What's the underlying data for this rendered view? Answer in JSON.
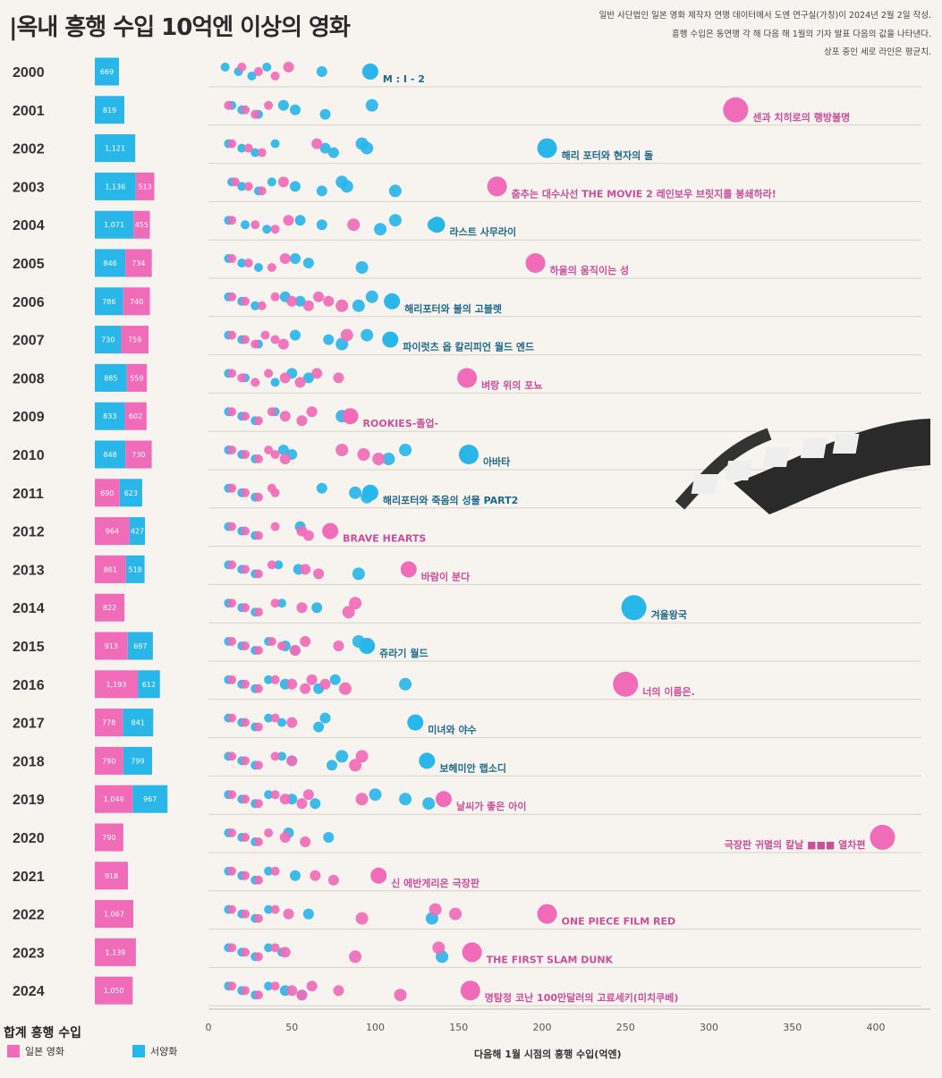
{
  "title": "|옥내 흥행 수입 10억엔 이상의 영화",
  "notes": [
    "일반 사단법인 일본 영화 제작자 연맹 데이터에서 도엔 연구실(가칭)이 2024년 2월 2일 작성.",
    "흥행 수입은 동연맹 각 해 다음 해 1월의 기자 발표 다음의 값을 나타낸다.",
    "상포 중인 세로 라인은 평균치."
  ],
  "legend": {
    "title": "합계 흥행 수입",
    "japanese": "일본 영화",
    "western": "서양화"
  },
  "colors": {
    "japanese": "#f06cb9",
    "western": "#29b6e8",
    "background": "#f7f3ef"
  },
  "chart_data": {
    "type": "scatter",
    "xlabel": "다음해 1월 시점의 흥행 수입(억엔)",
    "xlim": [
      0,
      430
    ],
    "xticks": [
      0,
      50,
      100,
      150,
      200,
      250,
      300,
      350,
      400
    ],
    "years": [
      2000,
      2001,
      2002,
      2003,
      2004,
      2005,
      2006,
      2007,
      2008,
      2009,
      2010,
      2011,
      2012,
      2013,
      2014,
      2015,
      2016,
      2017,
      2018,
      2019,
      2020,
      2021,
      2022,
      2023,
      2024
    ],
    "totals": [
      {
        "year": 2000,
        "western": 669,
        "japanese": null,
        "western_label": "669",
        "japanese_label": ""
      },
      {
        "year": 2001,
        "western": 819,
        "japanese": null,
        "western_label": "819",
        "japanese_label": ""
      },
      {
        "year": 2002,
        "western": 1121,
        "japanese": null,
        "western_label": "1,121",
        "japanese_label": ""
      },
      {
        "year": 2003,
        "western": 1136,
        "japanese": 513,
        "western_label": "1,136",
        "japanese_label": "513"
      },
      {
        "year": 2004,
        "western": 1071,
        "japanese": 455,
        "western_label": "1,071",
        "japanese_label": "455"
      },
      {
        "year": 2005,
        "western": 846,
        "japanese": 734,
        "western_label": "846",
        "japanese_label": "734"
      },
      {
        "year": 2006,
        "western": 786,
        "japanese": 740,
        "western_label": "786",
        "japanese_label": "740"
      },
      {
        "year": 2007,
        "western": 730,
        "japanese": 759,
        "western_label": "730",
        "japanese_label": "759"
      },
      {
        "year": 2008,
        "western": 885,
        "japanese": 559,
        "western_label": "885",
        "japanese_label": "559"
      },
      {
        "year": 2009,
        "western": 833,
        "japanese": 602,
        "western_label": "833",
        "japanese_label": "602"
      },
      {
        "year": 2010,
        "western": 848,
        "japanese": 730,
        "western_label": "848",
        "japanese_label": "730"
      },
      {
        "year": 2011,
        "japanese": 690,
        "western": 623,
        "japanese_label": "690",
        "western_label": "623"
      },
      {
        "year": 2012,
        "japanese": 964,
        "western": 427,
        "japanese_label": "964",
        "western_label": "427"
      },
      {
        "year": 2013,
        "japanese": 861,
        "western": 518,
        "japanese_label": "861",
        "western_label": "518"
      },
      {
        "year": 2014,
        "japanese": 822,
        "western": null,
        "japanese_label": "822",
        "western_label": ""
      },
      {
        "year": 2015,
        "japanese": 913,
        "western": 697,
        "japanese_label": "913",
        "western_label": "697"
      },
      {
        "year": 2016,
        "japanese": 1193,
        "western": 612,
        "japanese_label": "1,193",
        "western_label": "612"
      },
      {
        "year": 2017,
        "japanese": 778,
        "western": 841,
        "japanese_label": "778",
        "western_label": "841"
      },
      {
        "year": 2018,
        "japanese": 790,
        "western": 799,
        "japanese_label": "790",
        "western_label": "799"
      },
      {
        "year": 2019,
        "japanese": 1049,
        "western": 967,
        "japanese_label": "1,049",
        "western_label": "967"
      },
      {
        "year": 2020,
        "japanese": 790,
        "western": null,
        "japanese_label": "790",
        "western_label": ""
      },
      {
        "year": 2021,
        "japanese": 918,
        "western": null,
        "japanese_label": "918",
        "western_label": ""
      },
      {
        "year": 2022,
        "japanese": 1067,
        "western": null,
        "japanese_label": "1,067",
        "western_label": ""
      },
      {
        "year": 2023,
        "japanese": 1139,
        "western": null,
        "japanese_label": "1,139",
        "western_label": ""
      },
      {
        "year": 2024,
        "japanese": 1050,
        "western": null,
        "japanese_label": "1,050",
        "western_label": ""
      }
    ],
    "top_films": [
      {
        "year": 2000,
        "title": "M : I - 2",
        "value": 97,
        "origin": "western"
      },
      {
        "year": 2001,
        "title": "센과 치히로의 행방불명",
        "value": 316,
        "origin": "japanese"
      },
      {
        "year": 2002,
        "title": "해리 포터와 현자의 돌",
        "value": 203,
        "origin": "western"
      },
      {
        "year": 2003,
        "title": "춤추는 대수사선  THE MOVIE 2 레인보우 브릿지를 봉쇄하라!",
        "value": 173,
        "origin": "japanese"
      },
      {
        "year": 2004,
        "title": "라스트 사무라이",
        "value": 137,
        "origin": "western"
      },
      {
        "year": 2005,
        "title": "하울의 움직이는 성",
        "value": 196,
        "origin": "japanese"
      },
      {
        "year": 2006,
        "title": "해리포터와 불의 고블렛",
        "value": 110,
        "origin": "western"
      },
      {
        "year": 2007,
        "title": "파이럿츠 옵 칼리피언        월드 엔드",
        "value": 109,
        "origin": "western"
      },
      {
        "year": 2008,
        "title": "벼랑 위의 포뇨",
        "value": 155,
        "origin": "japanese"
      },
      {
        "year": 2009,
        "title": "ROOKIES-졸업-",
        "value": 85,
        "origin": "japanese"
      },
      {
        "year": 2010,
        "title": "아바타",
        "value": 156,
        "origin": "western"
      },
      {
        "year": 2011,
        "title": "해리포터와 죽음의 성물 PART2",
        "value": 97,
        "origin": "western"
      },
      {
        "year": 2012,
        "title": "BRAVE HEARTS",
        "value": 73,
        "origin": "japanese"
      },
      {
        "year": 2013,
        "title": "바람이 분다",
        "value": 120,
        "origin": "japanese"
      },
      {
        "year": 2014,
        "title": "겨울왕국",
        "value": 255,
        "origin": "western"
      },
      {
        "year": 2015,
        "title": "쥬라기 월드",
        "value": 95,
        "origin": "western"
      },
      {
        "year": 2016,
        "title": "너의 이름은.",
        "value": 250,
        "origin": "japanese"
      },
      {
        "year": 2017,
        "title": "미녀와 야수",
        "value": 124,
        "origin": "western"
      },
      {
        "year": 2018,
        "title": "보헤미안 랩소디",
        "value": 131,
        "origin": "western"
      },
      {
        "year": 2019,
        "title": "날씨가 좋은 아이",
        "value": 141,
        "origin": "japanese"
      },
      {
        "year": 2020,
        "title": "극장판 귀멸의 칼날 ■■■ 열차편",
        "value": 404,
        "origin": "japanese"
      },
      {
        "year": 2021,
        "title": "신 에반게리온 극장판",
        "value": 102,
        "origin": "japanese"
      },
      {
        "year": 2022,
        "title": "ONE PIECE FILM RED",
        "value": 203,
        "origin": "japanese"
      },
      {
        "year": 2023,
        "title": "THE FIRST SLAM DUNK",
        "value": 158,
        "origin": "japanese"
      },
      {
        "year": 2024,
        "title": "명탐정 코난 100만달러의 고료세키(미치쿠베)",
        "value": 157,
        "origin": "japanese"
      }
    ],
    "other_films": [
      {
        "year": 2000,
        "japanese": [
          20,
          30,
          40,
          48
        ],
        "western": [
          10,
          18,
          26,
          35,
          68
        ]
      },
      {
        "year": 2001,
        "japanese": [
          12,
          22,
          28,
          36
        ],
        "western": [
          14,
          20,
          30,
          45,
          52,
          70,
          98
        ]
      },
      {
        "year": 2002,
        "japanese": [
          14,
          24,
          32,
          65
        ],
        "western": [
          12,
          20,
          28,
          40,
          70,
          75,
          92,
          95
        ]
      },
      {
        "year": 2003,
        "japanese": [
          16,
          24,
          32,
          45
        ],
        "western": [
          14,
          20,
          30,
          38,
          52,
          68,
          80,
          83,
          112
        ]
      },
      {
        "year": 2004,
        "japanese": [
          14,
          28,
          40,
          48,
          87
        ],
        "western": [
          12,
          22,
          35,
          55,
          68,
          103,
          112,
          135
        ]
      },
      {
        "year": 2005,
        "japanese": [
          14,
          24,
          38,
          46
        ],
        "western": [
          12,
          20,
          30,
          52,
          60,
          92
        ]
      },
      {
        "year": 2006,
        "japanese": [
          14,
          22,
          32,
          40,
          50,
          60,
          66,
          72,
          80
        ],
        "western": [
          12,
          20,
          28,
          46,
          55,
          90,
          98
        ]
      },
      {
        "year": 2007,
        "japanese": [
          14,
          22,
          28,
          34,
          40,
          45,
          83
        ],
        "western": [
          12,
          20,
          30,
          52,
          72,
          80,
          95
        ]
      },
      {
        "year": 2008,
        "japanese": [
          14,
          20,
          28,
          36,
          46,
          55,
          65,
          78
        ],
        "western": [
          12,
          22,
          40,
          50,
          60
        ]
      },
      {
        "year": 2009,
        "japanese": [
          14,
          22,
          30,
          38,
          46,
          56,
          62,
          84
        ],
        "western": [
          12,
          20,
          28,
          40,
          80
        ]
      },
      {
        "year": 2010,
        "japanese": [
          14,
          22,
          30,
          36,
          40,
          46,
          80,
          93,
          102
        ],
        "western": [
          12,
          20,
          28,
          45,
          50,
          108,
          118
        ]
      },
      {
        "year": 2011,
        "japanese": [
          14,
          22,
          30,
          38,
          40
        ],
        "western": [
          12,
          20,
          28,
          68,
          88,
          95
        ]
      },
      {
        "year": 2012,
        "japanese": [
          14,
          22,
          30,
          40,
          56,
          60
        ],
        "western": [
          12,
          20,
          28,
          55
        ]
      },
      {
        "year": 2013,
        "japanese": [
          14,
          22,
          30,
          38,
          58,
          66
        ],
        "western": [
          12,
          20,
          28,
          42,
          54,
          90
        ]
      },
      {
        "year": 2014,
        "japanese": [
          14,
          22,
          30,
          40,
          56,
          84,
          88
        ],
        "western": [
          12,
          20,
          28,
          44,
          65
        ]
      },
      {
        "year": 2015,
        "japanese": [
          14,
          22,
          30,
          38,
          44,
          52,
          58,
          78
        ],
        "western": [
          12,
          20,
          28,
          36,
          46,
          52,
          90
        ]
      },
      {
        "year": 2016,
        "japanese": [
          14,
          22,
          30,
          40,
          50,
          58,
          62,
          70,
          82
        ],
        "western": [
          12,
          20,
          28,
          36,
          46,
          66,
          76,
          118
        ]
      },
      {
        "year": 2017,
        "japanese": [
          14,
          22,
          30,
          40,
          50
        ],
        "western": [
          12,
          20,
          28,
          36,
          44,
          66,
          70
        ]
      },
      {
        "year": 2018,
        "japanese": [
          14,
          22,
          30,
          40,
          50,
          88,
          92
        ],
        "western": [
          12,
          20,
          28,
          44,
          50,
          74,
          80
        ]
      },
      {
        "year": 2019,
        "japanese": [
          14,
          22,
          30,
          40,
          46,
          56,
          60,
          92
        ],
        "western": [
          12,
          20,
          28,
          36,
          50,
          64,
          100,
          118,
          132
        ]
      },
      {
        "year": 2020,
        "japanese": [
          14,
          22,
          30,
          36,
          46,
          58
        ],
        "western": [
          12,
          20,
          28,
          48,
          72
        ]
      },
      {
        "year": 2021,
        "japanese": [
          14,
          22,
          30,
          40,
          64,
          75
        ],
        "western": [
          12,
          20,
          28,
          36,
          52
        ]
      },
      {
        "year": 2022,
        "japanese": [
          14,
          22,
          30,
          40,
          48,
          92,
          136,
          148
        ],
        "western": [
          12,
          20,
          28,
          36,
          60,
          134
        ]
      },
      {
        "year": 2023,
        "japanese": [
          14,
          22,
          30,
          40,
          46,
          88,
          138
        ],
        "western": [
          12,
          20,
          28,
          36,
          44,
          140
        ]
      },
      {
        "year": 2024,
        "japanese": [
          14,
          22,
          30,
          40,
          50,
          56,
          62,
          78,
          115
        ],
        "western": [
          12,
          20,
          28,
          36,
          46,
          56
        ]
      }
    ]
  }
}
